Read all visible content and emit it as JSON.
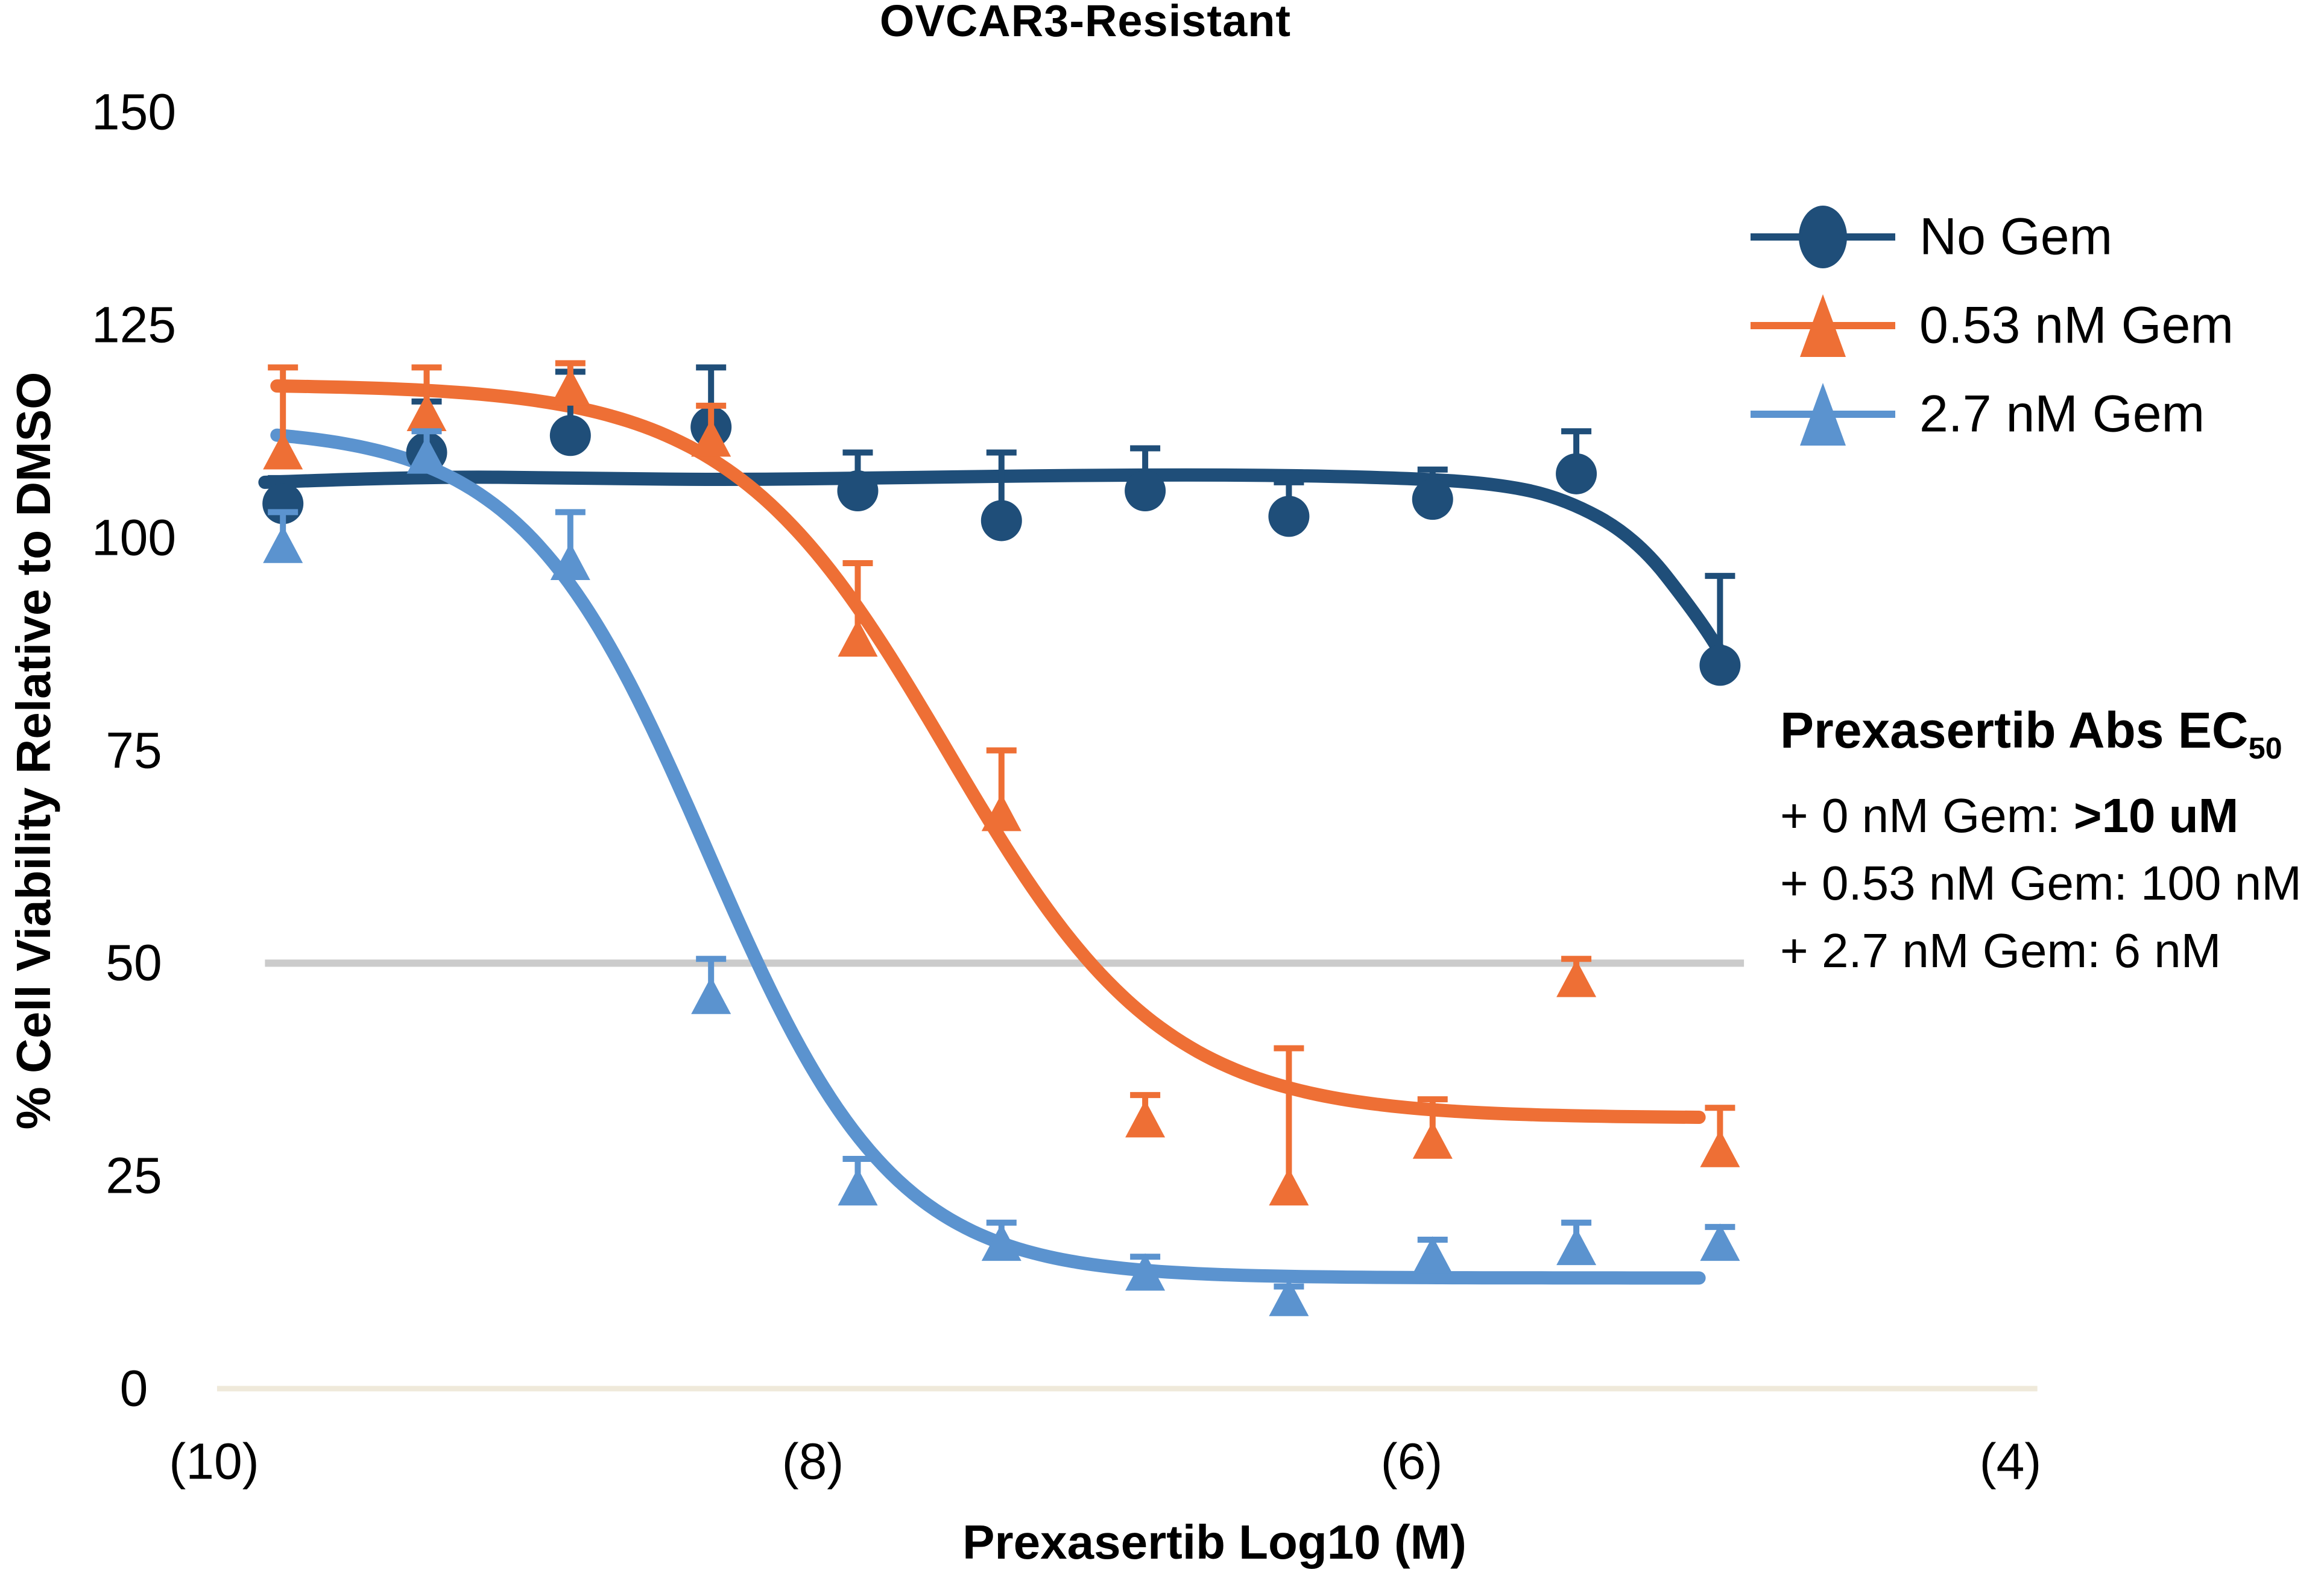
{
  "title": "OVCAR3-Resistant",
  "colors": {
    "navy": "#1F4E79",
    "orange": "#EE6F35",
    "light_blue": "#5B93CF",
    "gridline_50": "#CBCBCB",
    "gridline_0": "#EFE9DA",
    "text": "#000000",
    "background": "#FFFFFF"
  },
  "chart_data": {
    "type": "scatter",
    "title": "OVCAR3-Resistant",
    "xlabel": "Prexasertib Log10 (M)",
    "ylabel": "% Cell Viability Relative to DMSO",
    "xlim": [
      -10.35,
      -3.65
    ],
    "ylim": [
      0,
      150
    ],
    "grid": "horizontal reference lines at y=50 and y=0 only",
    "legend_position": "upper right, outside plot",
    "x_ticks": [
      {
        "value": -10,
        "label": "(10)"
      },
      {
        "value": -8,
        "label": "(8)"
      },
      {
        "value": -6,
        "label": "(6)"
      },
      {
        "value": -4,
        "label": "(4)"
      }
    ],
    "y_ticks": [
      {
        "value": 0,
        "label": "0"
      },
      {
        "value": 25,
        "label": "25"
      },
      {
        "value": 50,
        "label": "50"
      },
      {
        "value": 75,
        "label": "75"
      },
      {
        "value": 100,
        "label": "100"
      },
      {
        "value": 125,
        "label": "125"
      },
      {
        "value": 150,
        "label": "150"
      }
    ],
    "reference_lines": [
      {
        "y": 50,
        "x_start": -9.83,
        "x_end": -4.89,
        "color": "#CBCBCB",
        "width": 12
      },
      {
        "y": 0,
        "x_start": -9.99,
        "x_end": -3.91,
        "color": "#EFE9DA",
        "width": 9
      }
    ],
    "x": [
      -9.77,
      -9.29,
      -8.81,
      -8.34,
      -7.85,
      -7.37,
      -6.89,
      -6.41,
      -5.93,
      -5.45,
      -4.97
    ],
    "series": [
      {
        "name": "No Gem",
        "marker": "circle",
        "color": "#1F4E79",
        "values": [
          104,
          110,
          112,
          113,
          105.5,
          102,
          105.5,
          102.5,
          104.5,
          107.5,
          85
        ],
        "err_up": [
          3,
          6,
          7.5,
          7,
          4.5,
          8,
          5,
          4,
          3.5,
          5,
          10.5
        ],
        "curve": {
          "type": "points",
          "points": [
            [
              -9.83,
              106.5
            ],
            [
              -9.3,
              107.2
            ],
            [
              -8.8,
              107.0
            ],
            [
              -8.3,
              106.8
            ],
            [
              -7.8,
              107.0
            ],
            [
              -7.2,
              107.3
            ],
            [
              -6.6,
              107.4
            ],
            [
              -6.1,
              107.1
            ],
            [
              -5.75,
              106.5
            ],
            [
              -5.5,
              104.8
            ],
            [
              -5.25,
              100
            ],
            [
              -5.05,
              91
            ],
            [
              -4.95,
              85.5
            ]
          ]
        }
      },
      {
        "name": "0.53 nM Gem",
        "marker": "triangle",
        "color": "#EE6F35",
        "values": [
          110,
          114.5,
          117.5,
          111.5,
          88,
          67.5,
          31.5,
          23.5,
          29,
          48,
          28
        ],
        "err_up": [
          10,
          5.5,
          3,
          4,
          9,
          7.5,
          3,
          16.5,
          5,
          2.5,
          5
        ],
        "curve": {
          "type": "logistic",
          "top": 118,
          "bottom": 31.8,
          "log_ec50": -7.55,
          "hill": 1.2,
          "x_start": -9.79,
          "x_end": -5.04
        }
      },
      {
        "name": "2.7 nM Gem",
        "marker": "triangle",
        "color": "#5B93CF",
        "values": [
          99,
          109.5,
          97,
          46,
          23.5,
          17,
          13.5,
          10.5,
          15.5,
          16.5,
          17
        ],
        "err_up": [
          4,
          3,
          6,
          4.5,
          3.5,
          2.5,
          2,
          1.5,
          2,
          3,
          2
        ],
        "curve": {
          "type": "logistic",
          "top": 113,
          "bottom": 13,
          "log_ec50": -8.35,
          "hill": 1.4,
          "x_start": -9.79,
          "x_end": -5.04
        }
      }
    ]
  },
  "legend": {
    "items": [
      {
        "label": "No Gem",
        "marker": "circle",
        "color": "#1F4E79"
      },
      {
        "label": "0.53 nM Gem",
        "marker": "triangle",
        "color": "#EE6F35"
      },
      {
        "label": "2.7 nM Gem",
        "marker": "triangle",
        "color": "#5B93CF"
      }
    ]
  },
  "annotation": {
    "title_main": "Prexasertib Abs EC",
    "title_sub": "50",
    "lines": [
      {
        "pre": "+ 0 nM Gem: ",
        "bold": ">10 uM"
      },
      {
        "pre": "+ 0.53 nM Gem: 100 nM",
        "bold": ""
      },
      {
        "pre": "+ 2.7 nM Gem: 6 nM",
        "bold": ""
      }
    ]
  }
}
